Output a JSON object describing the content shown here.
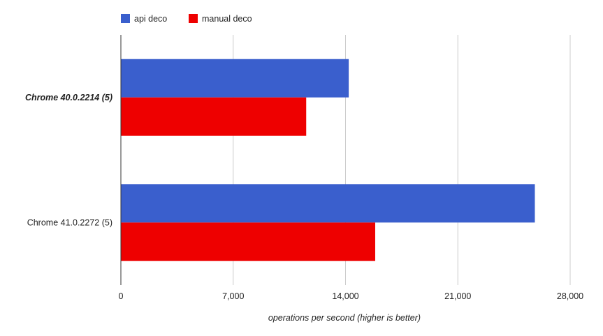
{
  "chart_data": {
    "type": "bar",
    "orientation": "horizontal",
    "categories": [
      "Chrome 40.0.2214 (5)",
      "Chrome 41.0.2272 (5)"
    ],
    "category_emphasis": [
      true,
      false
    ],
    "series": [
      {
        "name": "api deco",
        "values": [
          14200,
          25800
        ],
        "color": "#3A5FCD"
      },
      {
        "name": "manual deco",
        "values": [
          11550,
          15850
        ],
        "color": "#EE0000"
      }
    ],
    "xlabel": "operations per second (higher is better)",
    "xlim": [
      0,
      28000
    ],
    "xticks": [
      0,
      7000,
      14000,
      21000,
      28000
    ],
    "xtick_labels": [
      "0",
      "7,000",
      "14,000",
      "21,000",
      "28,000"
    ],
    "grid": true,
    "legend_position": "top-left"
  }
}
